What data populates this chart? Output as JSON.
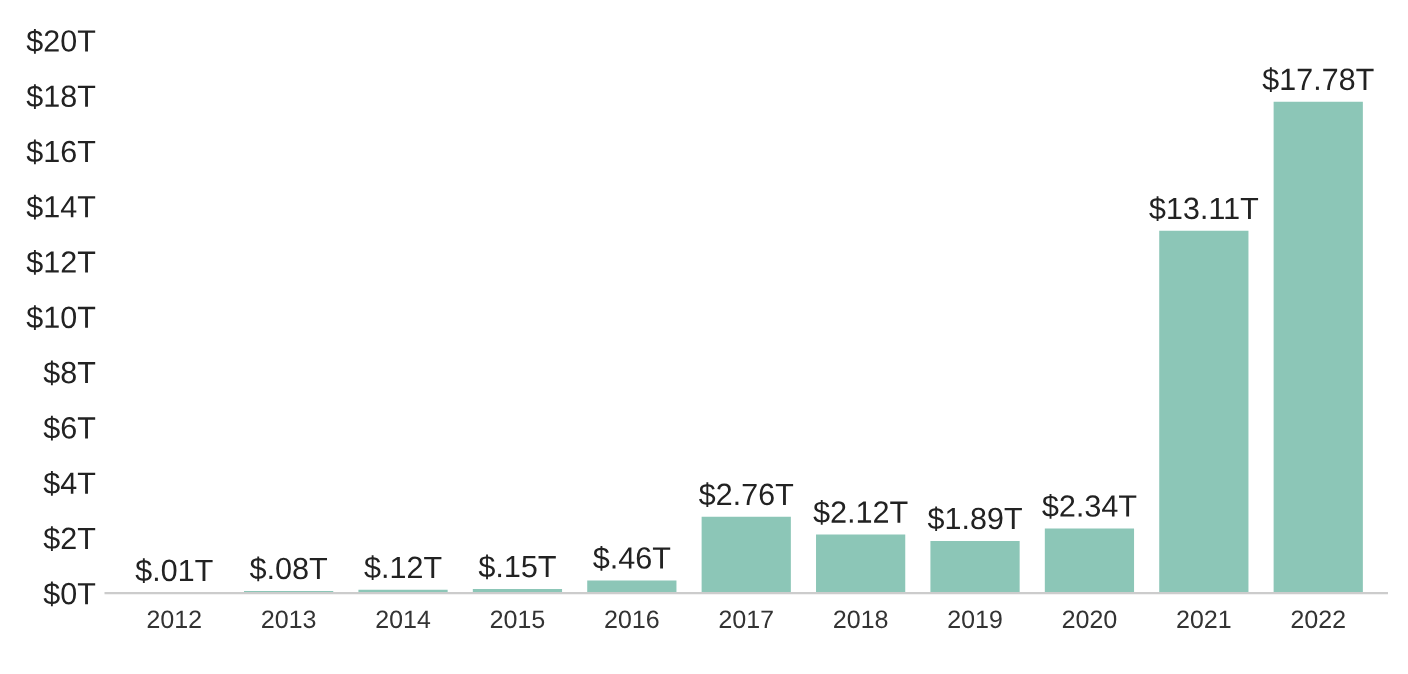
{
  "chart_data": {
    "type": "bar",
    "categories": [
      "2012",
      "2013",
      "2014",
      "2015",
      "2016",
      "2017",
      "2018",
      "2019",
      "2020",
      "2021",
      "2022"
    ],
    "values": [
      0.01,
      0.08,
      0.12,
      0.15,
      0.46,
      2.76,
      2.12,
      1.89,
      2.34,
      13.11,
      17.78
    ],
    "value_labels": [
      "$.01T",
      "$.08T",
      "$.12T",
      "$.15T",
      "$.46T",
      "$2.76T",
      "$2.12T",
      "$1.89T",
      "$2.34T",
      "$13.11T",
      "$17.78T"
    ],
    "color": "#8cc6b7",
    "ylim": [
      0,
      20
    ],
    "yticks": [
      {
        "value": 0,
        "label": "$0T"
      },
      {
        "value": 2,
        "label": "$2T"
      },
      {
        "value": 4,
        "label": "$4T"
      },
      {
        "value": 6,
        "label": "$6T"
      },
      {
        "value": 8,
        "label": "$8T"
      },
      {
        "value": 10,
        "label": "$10T"
      },
      {
        "value": 12,
        "label": "$12T"
      },
      {
        "value": 14,
        "label": "$14T"
      },
      {
        "value": 16,
        "label": "$16T"
      },
      {
        "value": 18,
        "label": "$18T"
      },
      {
        "value": 20,
        "label": "$20T"
      }
    ],
    "grid": false
  }
}
